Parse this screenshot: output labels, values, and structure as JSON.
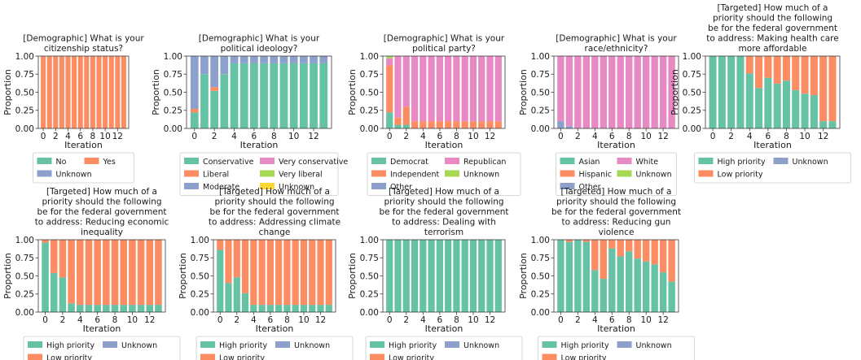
{
  "chart_data": [
    {
      "type": "bar",
      "stacked": true,
      "title": "[Demographic] What is your citizenship status?",
      "xlabel": "Iteration",
      "ylabel": "Proportion",
      "ylim": [
        0,
        1
      ],
      "yticks": [
        "0.00",
        "0.25",
        "0.50",
        "0.75",
        "1.00"
      ],
      "xtick_labels": [
        "0",
        "2",
        "4",
        "6",
        "8",
        "10",
        "12"
      ],
      "x": [
        0,
        1,
        2,
        3,
        4,
        5,
        6,
        7,
        8,
        9,
        10,
        11,
        12,
        13
      ],
      "legend_cols": 2,
      "legend": [
        "No",
        "Yes",
        "Unknown"
      ],
      "series": [
        {
          "name": "No",
          "color": "#66c2a5",
          "values": [
            0,
            0,
            0,
            0,
            0,
            0,
            0,
            0,
            0,
            0,
            0,
            0,
            0,
            0
          ]
        },
        {
          "name": "Yes",
          "color": "#fc8d62",
          "values": [
            1,
            1,
            1,
            1,
            1,
            1,
            1,
            1,
            1,
            1,
            1,
            1,
            1,
            1
          ]
        },
        {
          "name": "Unknown",
          "color": "#8da0cb",
          "values": [
            0,
            0,
            0,
            0,
            0,
            0,
            0,
            0,
            0,
            0,
            0,
            0,
            0,
            0
          ]
        }
      ]
    },
    {
      "type": "bar",
      "stacked": true,
      "title": "[Demographic] What is your political ideology?",
      "xlabel": "Iteration",
      "ylabel": "Proportion",
      "ylim": [
        0,
        1
      ],
      "yticks": [
        "0.00",
        "0.25",
        "0.50",
        "0.75",
        "1.00"
      ],
      "xtick_labels": [
        "0",
        "2",
        "4",
        "6",
        "8",
        "10",
        "12"
      ],
      "x": [
        0,
        1,
        2,
        3,
        4,
        5,
        6,
        7,
        8,
        9,
        10,
        11,
        12,
        13
      ],
      "legend_cols": 2,
      "legend": [
        "Conservative",
        "Very conservative",
        "Liberal",
        "Very liberal",
        "Moderate",
        "Unknown"
      ],
      "series": [
        {
          "name": "Conservative",
          "color": "#66c2a5",
          "values": [
            0.22,
            0.75,
            0.52,
            0.75,
            0.9,
            0.9,
            0.9,
            0.9,
            0.9,
            0.9,
            0.9,
            0.9,
            0.9,
            0.9
          ]
        },
        {
          "name": "Liberal",
          "color": "#fc8d62",
          "values": [
            0.05,
            0,
            0.05,
            0,
            0,
            0,
            0,
            0,
            0,
            0,
            0,
            0,
            0,
            0
          ]
        },
        {
          "name": "Moderate",
          "color": "#8da0cb",
          "values": [
            0.73,
            0.25,
            0.43,
            0.25,
            0.1,
            0.1,
            0.1,
            0.1,
            0.1,
            0.1,
            0.1,
            0.1,
            0.1,
            0.1
          ]
        },
        {
          "name": "Very conservative",
          "color": "#e78ac3",
          "values": [
            0,
            0,
            0,
            0,
            0,
            0,
            0,
            0,
            0,
            0,
            0,
            0,
            0,
            0
          ]
        },
        {
          "name": "Very liberal",
          "color": "#a6d854",
          "values": [
            0,
            0,
            0,
            0,
            0,
            0,
            0,
            0,
            0,
            0,
            0,
            0,
            0,
            0
          ]
        },
        {
          "name": "Unknown",
          "color": "#ffd92f",
          "values": [
            0,
            0,
            0,
            0,
            0,
            0,
            0,
            0,
            0,
            0,
            0,
            0,
            0,
            0
          ]
        }
      ]
    },
    {
      "type": "bar",
      "stacked": true,
      "title": "[Demographic] What is your political party?",
      "xlabel": "Iteration",
      "ylabel": "Proportion",
      "ylim": [
        0,
        1
      ],
      "yticks": [
        "0.00",
        "0.25",
        "0.50",
        "0.75",
        "1.00"
      ],
      "xtick_labels": [
        "0",
        "2",
        "4",
        "6",
        "8",
        "10",
        "12"
      ],
      "x": [
        0,
        1,
        2,
        3,
        4,
        5,
        6,
        7,
        8,
        9,
        10,
        11,
        12,
        13
      ],
      "legend_cols": 2,
      "legend": [
        "Democrat",
        "Republican",
        "Independent",
        "Unknown",
        "Other"
      ],
      "series": [
        {
          "name": "Democrat",
          "color": "#66c2a5",
          "values": [
            0.22,
            0.05,
            0.05,
            0,
            0,
            0,
            0,
            0,
            0,
            0,
            0,
            0,
            0,
            0
          ]
        },
        {
          "name": "Independent",
          "color": "#fc8d62",
          "values": [
            0.65,
            0.1,
            0.25,
            0.1,
            0.1,
            0.1,
            0.1,
            0.1,
            0.1,
            0.1,
            0.1,
            0.1,
            0.1,
            0.1
          ]
        },
        {
          "name": "Other",
          "color": "#8da0cb",
          "values": [
            0,
            0,
            0,
            0,
            0,
            0,
            0,
            0,
            0,
            0,
            0,
            0,
            0,
            0
          ]
        },
        {
          "name": "Republican",
          "color": "#e78ac3",
          "values": [
            0.1,
            0.85,
            0.7,
            0.9,
            0.9,
            0.9,
            0.9,
            0.9,
            0.9,
            0.9,
            0.9,
            0.9,
            0.9,
            0.9
          ]
        },
        {
          "name": "Unknown",
          "color": "#a6d854",
          "values": [
            0.03,
            0,
            0,
            0,
            0,
            0,
            0,
            0,
            0,
            0,
            0,
            0,
            0,
            0
          ]
        }
      ]
    },
    {
      "type": "bar",
      "stacked": true,
      "title": "[Demographic] What is your race/ethnicity?",
      "xlabel": "Iteration",
      "ylabel": "Proportion",
      "ylim": [
        0,
        1
      ],
      "yticks": [
        "0.00",
        "0.25",
        "0.50",
        "0.75",
        "1.00"
      ],
      "xtick_labels": [
        "0",
        "2",
        "4",
        "6",
        "8",
        "10",
        "12"
      ],
      "x": [
        0,
        1,
        2,
        3,
        4,
        5,
        6,
        7,
        8,
        9,
        10,
        11,
        12,
        13
      ],
      "legend_cols": 2,
      "legend": [
        "Asian",
        "White",
        "Hispanic",
        "Unknown",
        "Other"
      ],
      "series": [
        {
          "name": "Asian",
          "color": "#66c2a5",
          "values": [
            0,
            0,
            0,
            0,
            0,
            0,
            0,
            0,
            0,
            0,
            0,
            0,
            0,
            0
          ]
        },
        {
          "name": "Hispanic",
          "color": "#fc8d62",
          "values": [
            0,
            0,
            0,
            0,
            0,
            0,
            0,
            0,
            0,
            0,
            0,
            0,
            0,
            0
          ]
        },
        {
          "name": "Other",
          "color": "#8da0cb",
          "values": [
            0.1,
            0.03,
            0,
            0,
            0,
            0,
            0,
            0,
            0,
            0,
            0,
            0,
            0,
            0
          ]
        },
        {
          "name": "White",
          "color": "#e78ac3",
          "values": [
            0.9,
            0.97,
            1,
            1,
            1,
            1,
            1,
            1,
            1,
            1,
            1,
            1,
            1,
            1
          ]
        },
        {
          "name": "Unknown",
          "color": "#a6d854",
          "values": [
            0,
            0,
            0,
            0,
            0,
            0,
            0,
            0,
            0,
            0,
            0,
            0,
            0,
            0
          ]
        }
      ]
    },
    {
      "type": "bar",
      "stacked": true,
      "title": "[Targeted] How much of a priority should the following be for the federal government to address: Making health care more affordable",
      "xlabel": "Iteration",
      "ylabel": "Proportion",
      "ylim": [
        0,
        1
      ],
      "yticks": [
        "0.00",
        "0.25",
        "0.50",
        "0.75",
        "1.00"
      ],
      "xtick_labels": [
        "0",
        "2",
        "4",
        "6",
        "8",
        "10",
        "12"
      ],
      "x": [
        0,
        1,
        2,
        3,
        4,
        5,
        6,
        7,
        8,
        9,
        10,
        11,
        12,
        13
      ],
      "legend_cols": 2,
      "legend": [
        "High priority",
        "Unknown",
        "Low priority"
      ],
      "series": [
        {
          "name": "High priority",
          "color": "#66c2a5",
          "values": [
            1,
            1,
            1,
            1,
            0.76,
            0.56,
            0.7,
            0.62,
            0.66,
            0.53,
            0.48,
            0.46,
            0.1,
            0.1
          ]
        },
        {
          "name": "Low priority",
          "color": "#fc8d62",
          "values": [
            0,
            0,
            0,
            0,
            0.24,
            0.44,
            0.3,
            0.38,
            0.34,
            0.47,
            0.52,
            0.54,
            0.9,
            0.9
          ]
        },
        {
          "name": "Unknown",
          "color": "#8da0cb",
          "values": [
            0,
            0,
            0,
            0,
            0,
            0,
            0,
            0,
            0,
            0,
            0,
            0,
            0,
            0
          ]
        }
      ]
    },
    {
      "type": "bar",
      "stacked": true,
      "title": "[Targeted] How much of a priority should the following be for the federal government to address: Reducing economic inequality",
      "xlabel": "Iteration",
      "ylabel": "Proportion",
      "ylim": [
        0,
        1
      ],
      "yticks": [
        "0.00",
        "0.25",
        "0.50",
        "0.75",
        "1.00"
      ],
      "xtick_labels": [
        "0",
        "2",
        "4",
        "6",
        "8",
        "10",
        "12"
      ],
      "x": [
        0,
        1,
        2,
        3,
        4,
        5,
        6,
        7,
        8,
        9,
        10,
        11,
        12,
        13
      ],
      "legend_cols": 2,
      "legend": [
        "High priority",
        "Unknown",
        "Low priority"
      ],
      "series": [
        {
          "name": "High priority",
          "color": "#66c2a5",
          "values": [
            0.96,
            0.54,
            0.48,
            0.12,
            0.1,
            0.1,
            0.1,
            0.1,
            0.1,
            0.1,
            0.1,
            0.1,
            0.1,
            0.1
          ]
        },
        {
          "name": "Low priority",
          "color": "#fc8d62",
          "values": [
            0.04,
            0.46,
            0.52,
            0.88,
            0.9,
            0.9,
            0.9,
            0.9,
            0.9,
            0.9,
            0.9,
            0.9,
            0.9,
            0.9
          ]
        },
        {
          "name": "Unknown",
          "color": "#8da0cb",
          "values": [
            0,
            0,
            0,
            0,
            0,
            0,
            0,
            0,
            0,
            0,
            0,
            0,
            0,
            0
          ]
        }
      ]
    },
    {
      "type": "bar",
      "stacked": true,
      "title": "[Targeted] How much of a priority should the following be for the federal government to address: Addressing climate change",
      "xlabel": "Iteration",
      "ylabel": "Proportion",
      "ylim": [
        0,
        1
      ],
      "yticks": [
        "0.00",
        "0.25",
        "0.50",
        "0.75",
        "1.00"
      ],
      "xtick_labels": [
        "0",
        "2",
        "4",
        "6",
        "8",
        "10",
        "12"
      ],
      "x": [
        0,
        1,
        2,
        3,
        4,
        5,
        6,
        7,
        8,
        9,
        10,
        11,
        12,
        13
      ],
      "legend_cols": 2,
      "legend": [
        "High priority",
        "Unknown",
        "Low priority"
      ],
      "series": [
        {
          "name": "High priority",
          "color": "#66c2a5",
          "values": [
            0.86,
            0.4,
            0.48,
            0.26,
            0.1,
            0.1,
            0.1,
            0.1,
            0.1,
            0.1,
            0.1,
            0.1,
            0.1,
            0.1
          ]
        },
        {
          "name": "Low priority",
          "color": "#fc8d62",
          "values": [
            0.14,
            0.6,
            0.52,
            0.74,
            0.9,
            0.9,
            0.9,
            0.9,
            0.9,
            0.9,
            0.9,
            0.9,
            0.9,
            0.9
          ]
        },
        {
          "name": "Unknown",
          "color": "#8da0cb",
          "values": [
            0,
            0,
            0,
            0,
            0,
            0,
            0,
            0,
            0,
            0,
            0,
            0,
            0,
            0
          ]
        }
      ]
    },
    {
      "type": "bar",
      "stacked": true,
      "title": "[Targeted] How much of a priority should the following be for the federal government to address: Dealing with terrorism",
      "xlabel": "Iteration",
      "ylabel": "Proportion",
      "ylim": [
        0,
        1
      ],
      "yticks": [
        "0.00",
        "0.25",
        "0.50",
        "0.75",
        "1.00"
      ],
      "xtick_labels": [
        "0",
        "2",
        "4",
        "6",
        "8",
        "10",
        "12"
      ],
      "x": [
        0,
        1,
        2,
        3,
        4,
        5,
        6,
        7,
        8,
        9,
        10,
        11,
        12,
        13
      ],
      "legend_cols": 2,
      "legend": [
        "High priority",
        "Unknown",
        "Low priority"
      ],
      "series": [
        {
          "name": "High priority",
          "color": "#66c2a5",
          "values": [
            1,
            1,
            1,
            1,
            1,
            1,
            1,
            1,
            1,
            1,
            1,
            1,
            1,
            1
          ]
        },
        {
          "name": "Low priority",
          "color": "#fc8d62",
          "values": [
            0,
            0,
            0,
            0,
            0,
            0,
            0,
            0,
            0,
            0,
            0,
            0,
            0,
            0
          ]
        },
        {
          "name": "Unknown",
          "color": "#8da0cb",
          "values": [
            0,
            0,
            0,
            0,
            0,
            0,
            0,
            0,
            0,
            0,
            0,
            0,
            0,
            0
          ]
        }
      ]
    },
    {
      "type": "bar",
      "stacked": true,
      "title": "[Targeted] How much of a priority should the following be for the federal government to address: Reducing gun violence",
      "xlabel": "Iteration",
      "ylabel": "Proportion",
      "ylim": [
        0,
        1
      ],
      "yticks": [
        "0.00",
        "0.25",
        "0.50",
        "0.75",
        "1.00"
      ],
      "xtick_labels": [
        "0",
        "2",
        "4",
        "6",
        "8",
        "10",
        "12"
      ],
      "x": [
        0,
        1,
        2,
        3,
        4,
        5,
        6,
        7,
        8,
        9,
        10,
        11,
        12,
        13
      ],
      "legend_cols": 2,
      "legend": [
        "High priority",
        "Unknown",
        "Low priority"
      ],
      "series": [
        {
          "name": "High priority",
          "color": "#66c2a5",
          "values": [
            1,
            0.97,
            1,
            0.97,
            0.58,
            0.46,
            0.88,
            0.77,
            0.84,
            0.74,
            0.7,
            0.66,
            0.55,
            0.42
          ]
        },
        {
          "name": "Low priority",
          "color": "#fc8d62",
          "values": [
            0,
            0.03,
            0,
            0.03,
            0.42,
            0.54,
            0.12,
            0.23,
            0.16,
            0.26,
            0.3,
            0.34,
            0.45,
            0.58
          ]
        },
        {
          "name": "Unknown",
          "color": "#8da0cb",
          "values": [
            0,
            0,
            0,
            0,
            0,
            0,
            0,
            0,
            0,
            0,
            0,
            0,
            0,
            0
          ]
        }
      ]
    }
  ]
}
